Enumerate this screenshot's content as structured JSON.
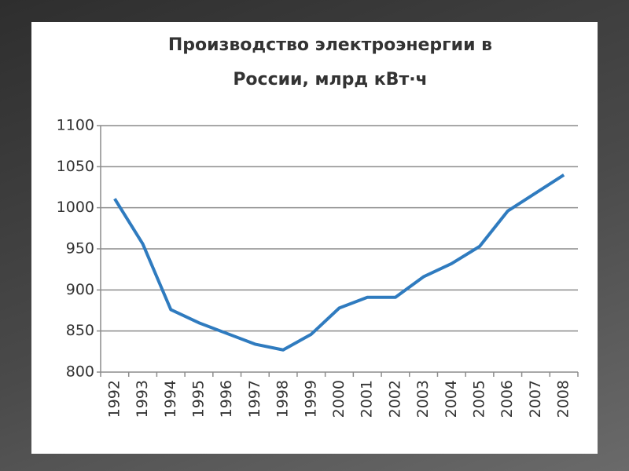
{
  "chart_data": {
    "type": "line",
    "title": "Производство электроэнергии в России, млрд кВт·ч",
    "categories": [
      "1992",
      "1993",
      "1994",
      "1995",
      "1996",
      "1997",
      "1998",
      "1999",
      "2000",
      "2001",
      "2002",
      "2003",
      "2004",
      "2005",
      "2006",
      "2007",
      "2008"
    ],
    "series": [
      {
        "name": "Производство",
        "color": "#2f7bbf",
        "values": [
          1011,
          956,
          876,
          860,
          847,
          834,
          827,
          846,
          878,
          891,
          891,
          916,
          932,
          953,
          996,
          1018,
          1040
        ]
      }
    ],
    "ylim": [
      800,
      1100
    ],
    "yticks": [
      800,
      850,
      900,
      950,
      1000,
      1050,
      1100
    ],
    "grid": true
  }
}
